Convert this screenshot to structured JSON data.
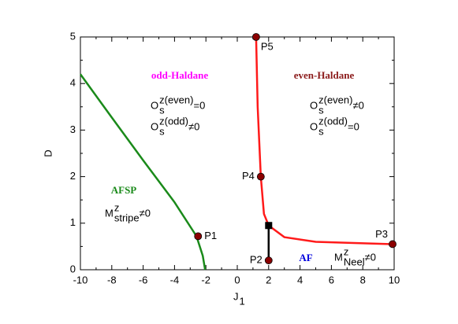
{
  "chart_data": {
    "type": "line",
    "xlabel": {
      "base": "J",
      "sub": "1"
    },
    "ylabel": "D",
    "xlim": [
      -10,
      10
    ],
    "ylim": [
      0,
      5
    ],
    "xticks": [
      -10,
      -8,
      -6,
      -4,
      -2,
      0,
      2,
      4,
      6,
      8,
      10
    ],
    "yticks": [
      0,
      1,
      2,
      3,
      4,
      5
    ],
    "series": [
      {
        "color": "#1a8a1a",
        "x": [
          -10,
          -8,
          -6,
          -4,
          -2.6,
          -2.2,
          -2.05
        ],
        "values": [
          4.2,
          3.27,
          2.35,
          1.45,
          0.72,
          0.3,
          0
        ]
      },
      {
        "color": "#ff1a1a",
        "x": [
          1.2,
          1.3,
          1.5,
          1.7,
          2,
          3,
          5,
          9.9
        ],
        "values": [
          5,
          3.5,
          2,
          1.2,
          0.95,
          0.7,
          0.6,
          0.55
        ]
      },
      {
        "color": "#000000",
        "x": [
          2,
          2
        ],
        "values": [
          0.95,
          0.2
        ]
      }
    ],
    "points": [
      {
        "label": "P1",
        "x": -2.5,
        "y": 0.72
      },
      {
        "label": "P2",
        "x": 2,
        "y": 0.2
      },
      {
        "label": "P3",
        "x": 9.9,
        "y": 0.55
      },
      {
        "label": "P4",
        "x": 1.5,
        "y": 2
      },
      {
        "label": "P5",
        "x": 1.2,
        "y": 5
      }
    ],
    "point_color": "#8b0000",
    "junction": {
      "x": 2,
      "y": 0.95,
      "color": "#000000"
    },
    "phases": [
      {
        "text": "odd-Haldane",
        "color": "#ff00ff"
      },
      {
        "text": "even-Haldane",
        "color": "#8b1a1a"
      },
      {
        "text": "AFSP",
        "color": "#1a8a1a"
      },
      {
        "text": "AF",
        "color": "#0000dd"
      }
    ],
    "order_parameters": [
      {
        "base": "O",
        "sub": "s",
        "sup": "z(even)",
        "rest": "=0"
      },
      {
        "base": "O",
        "sub": "s",
        "sup": "z(odd)",
        "rest": "≠0"
      },
      {
        "base": "O",
        "sub": "s",
        "sup": "z(even)",
        "rest": "≠0"
      },
      {
        "base": "O",
        "sub": "s",
        "sup": "z(odd)",
        "rest": "=0"
      },
      {
        "base": "M",
        "sub": "stripe",
        "sup": "z",
        "rest": "≠0"
      },
      {
        "base": "M",
        "sub": "Neel",
        "sup": "z",
        "rest": "≠0"
      }
    ]
  }
}
